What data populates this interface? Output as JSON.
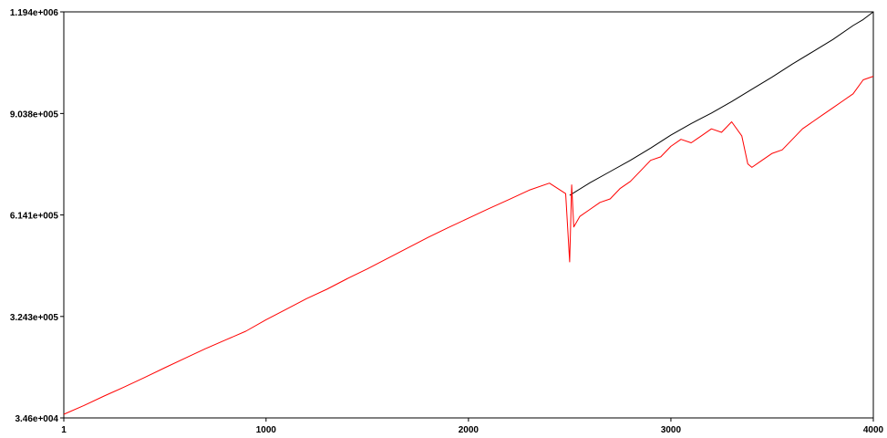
{
  "chart_data": {
    "type": "line",
    "title": "",
    "xlabel": "",
    "ylabel": "",
    "xlim": [
      1,
      4000
    ],
    "ylim": [
      34600,
      1194000
    ],
    "grid": false,
    "legend": "none",
    "x_ticks": [
      {
        "value": 1,
        "label": "1"
      },
      {
        "value": 1000,
        "label": "1000"
      },
      {
        "value": 2000,
        "label": "2000"
      },
      {
        "value": 3000,
        "label": "3000"
      },
      {
        "value": 4000,
        "label": "4000"
      }
    ],
    "y_ticks": [
      {
        "value": 34600,
        "label": "3.46e+004"
      },
      {
        "value": 324300,
        "label": "3.243e+005"
      },
      {
        "value": 614100,
        "label": "6.141e+005"
      },
      {
        "value": 903800,
        "label": "9.038e+005"
      },
      {
        "value": 1194000,
        "label": "1.194e+006"
      }
    ],
    "series": [
      {
        "color": "#000000",
        "x": [
          2500,
          2600,
          2700,
          2800,
          2900,
          3000,
          3100,
          3200,
          3300,
          3400,
          3500,
          3600,
          3700,
          3800,
          3900,
          3950,
          4000
        ],
        "y": [
          670000,
          706000,
          738000,
          770000,
          805000,
          842000,
          875000,
          905000,
          938000,
          973000,
          1008000,
          1045000,
          1080000,
          1115000,
          1155000,
          1172000,
          1194000
        ]
      },
      {
        "color": "#ff0000",
        "x": [
          1,
          100,
          200,
          300,
          400,
          500,
          600,
          700,
          800,
          900,
          1000,
          1100,
          1200,
          1300,
          1400,
          1500,
          1600,
          1700,
          1800,
          1900,
          2000,
          2100,
          2200,
          2300,
          2400,
          2480,
          2500,
          2510,
          2520,
          2550,
          2600,
          2650,
          2700,
          2750,
          2800,
          2850,
          2900,
          2950,
          3000,
          3050,
          3100,
          3150,
          3200,
          3250,
          3300,
          3350,
          3380,
          3400,
          3450,
          3500,
          3550,
          3600,
          3650,
          3700,
          3750,
          3800,
          3850,
          3900,
          3950,
          4000
        ],
        "y": [
          45000,
          70000,
          97000,
          123000,
          150000,
          178000,
          205000,
          232000,
          257000,
          282000,
          315000,
          345000,
          375000,
          402000,
          432000,
          460000,
          490000,
          520000,
          550000,
          578000,
          605000,
          632000,
          658000,
          685000,
          705000,
          675000,
          480000,
          700000,
          580000,
          610000,
          630000,
          650000,
          660000,
          690000,
          710000,
          740000,
          770000,
          780000,
          810000,
          830000,
          820000,
          840000,
          860000,
          850000,
          880000,
          840000,
          760000,
          750000,
          770000,
          790000,
          800000,
          830000,
          860000,
          880000,
          900000,
          920000,
          940000,
          960000,
          1000000,
          1010000
        ]
      }
    ]
  }
}
